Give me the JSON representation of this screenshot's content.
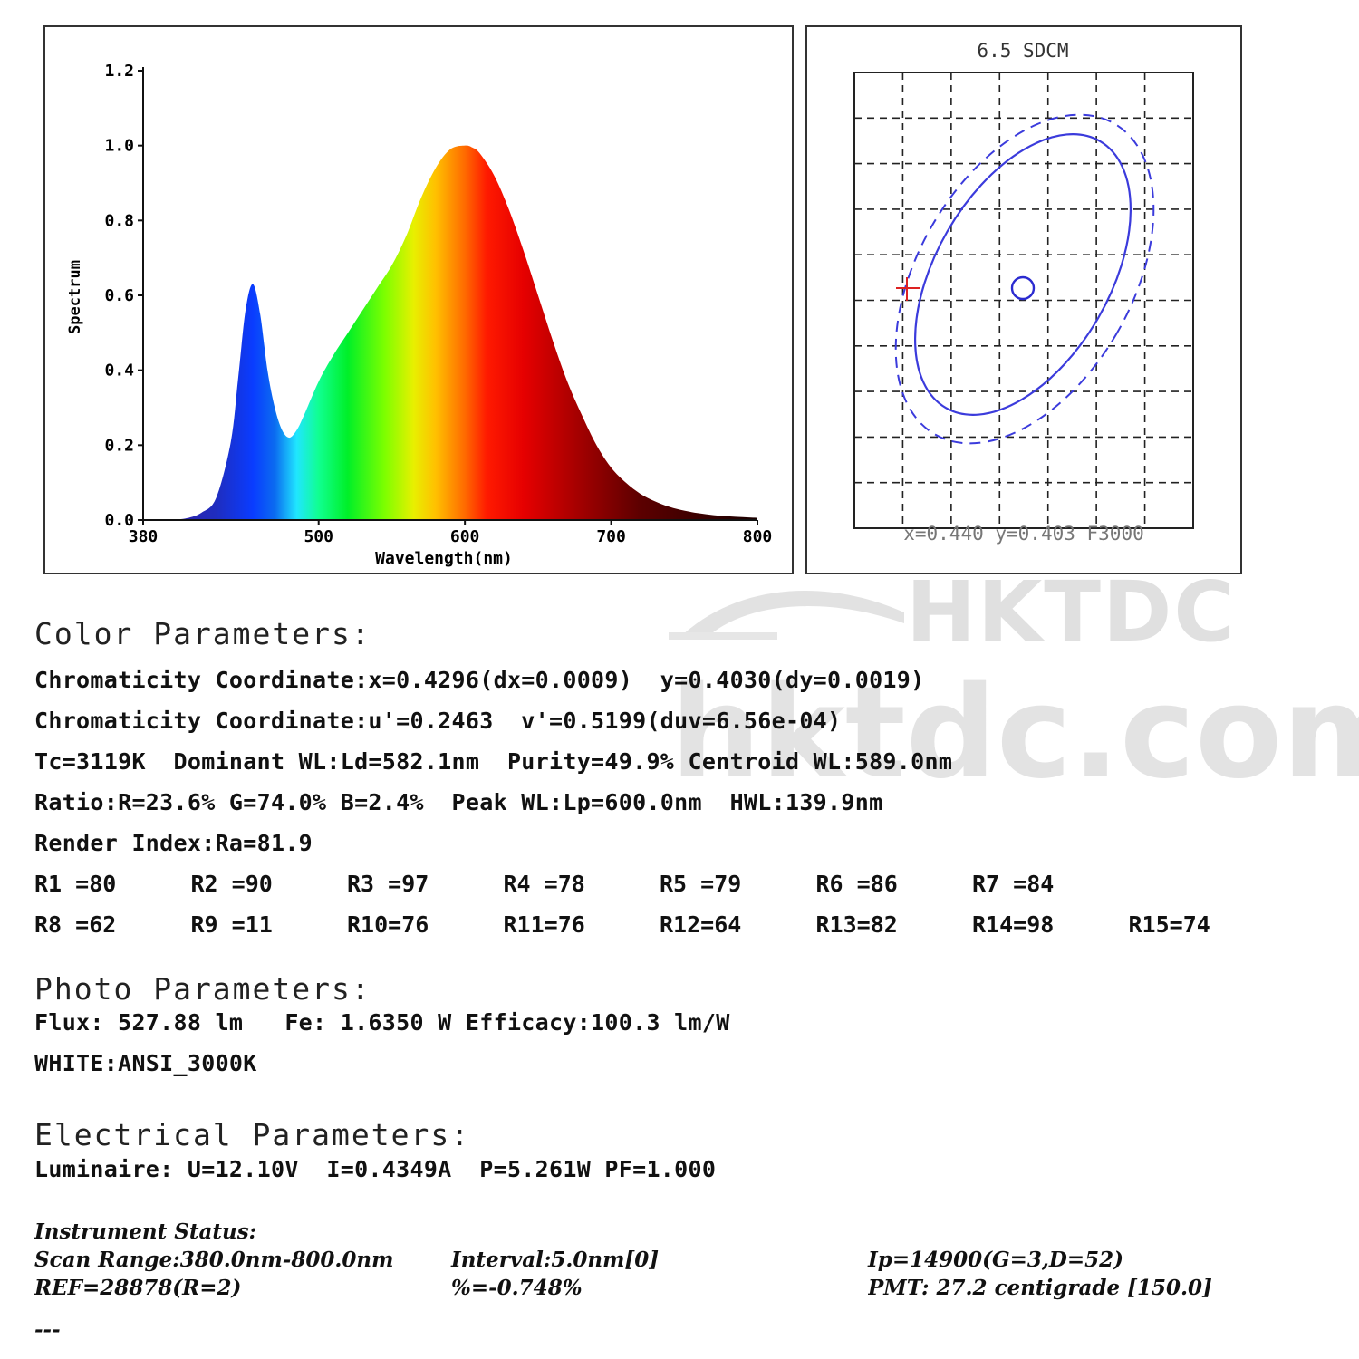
{
  "spectrum_chart": {
    "chart_data": {
      "type": "area",
      "xlabel": "Wavelength(nm)",
      "ylabel": "Spectrum",
      "xlim": [
        380,
        800
      ],
      "ylim": [
        0,
        1.2
      ],
      "x_ticks": [
        "380",
        "500",
        "600",
        "700",
        "800"
      ],
      "y_ticks": [
        "0.0",
        "0.2",
        "0.4",
        "0.6",
        "0.8",
        "1.0",
        "1.2"
      ],
      "x": [
        400,
        410,
        420,
        430,
        440,
        445,
        450,
        455,
        460,
        465,
        470,
        475,
        480,
        485,
        490,
        500,
        510,
        520,
        530,
        540,
        550,
        560,
        570,
        580,
        590,
        600,
        605,
        610,
        620,
        630,
        640,
        650,
        660,
        670,
        680,
        690,
        700,
        710,
        720,
        730,
        740,
        750,
        760,
        770,
        780,
        790,
        800
      ],
      "values": [
        0.0,
        0.005,
        0.02,
        0.06,
        0.21,
        0.38,
        0.56,
        0.63,
        0.55,
        0.4,
        0.3,
        0.24,
        0.22,
        0.24,
        0.28,
        0.37,
        0.44,
        0.5,
        0.56,
        0.62,
        0.68,
        0.76,
        0.86,
        0.94,
        0.99,
        1.0,
        0.995,
        0.98,
        0.92,
        0.83,
        0.72,
        0.6,
        0.48,
        0.37,
        0.28,
        0.2,
        0.14,
        0.1,
        0.07,
        0.05,
        0.035,
        0.025,
        0.018,
        0.013,
        0.01,
        0.008,
        0.006
      ],
      "grid": false
    }
  },
  "sdcm_chart": {
    "title": "6.5 SDCM",
    "footer": "x=0.440 y=0.403 F3000"
  },
  "color_parameters": {
    "heading": "Color Parameters:",
    "lines": [
      "Chromaticity Coordinate:x=0.4296(dx=0.0009)  y=0.4030(dy=0.0019)",
      "Chromaticity Coordinate:u'=0.2463  v'=0.5199(duv=6.56e-04)",
      "Tc=3119K  Dominant WL:Ld=582.1nm  Purity=49.9% Centroid WL:589.0nm",
      "Ratio:R=23.6% G=74.0% B=2.4%  Peak WL:Lp=600.0nm  HWL:139.9nm",
      "Render Index:Ra=81.9"
    ],
    "r_values_row1": [
      "R1 =80",
      "R2 =90",
      "R3 =97",
      "R4 =78",
      "R5 =79",
      "R6 =86",
      "R7 =84"
    ],
    "r_values_row2": [
      "R8 =62",
      "R9 =11",
      "R10=76",
      "R11=76",
      "R12=64",
      "R13=82",
      "R14=98",
      "R15=74"
    ]
  },
  "photo_parameters": {
    "heading": "Photo Parameters:",
    "lines": [
      "Flux: 527.88 lm   Fe: 1.6350 W Efficacy:100.3 lm/W",
      "WHITE:ANSI_3000K"
    ]
  },
  "electrical_parameters": {
    "heading": "Electrical Parameters:",
    "line": "Luminaire: U=12.10V  I=0.4349A  P=5.261W PF=1.000"
  },
  "instrument_status": {
    "heading": "Instrument Status:",
    "scan_range": "Scan Range:380.0nm-800.0nm",
    "interval": "Interval:5.0nm[0]",
    "ip": "Ip=14900(G=3,D=52)",
    "ref": "REF=28878(R=2)",
    "percent": "%=-0.748%",
    "pmt": "PMT: 27.2 centigrade [150.0]",
    "dashes": "---"
  },
  "watermark": {
    "logo_text": "HKTDC",
    "site_text": "hktdc.com"
  }
}
